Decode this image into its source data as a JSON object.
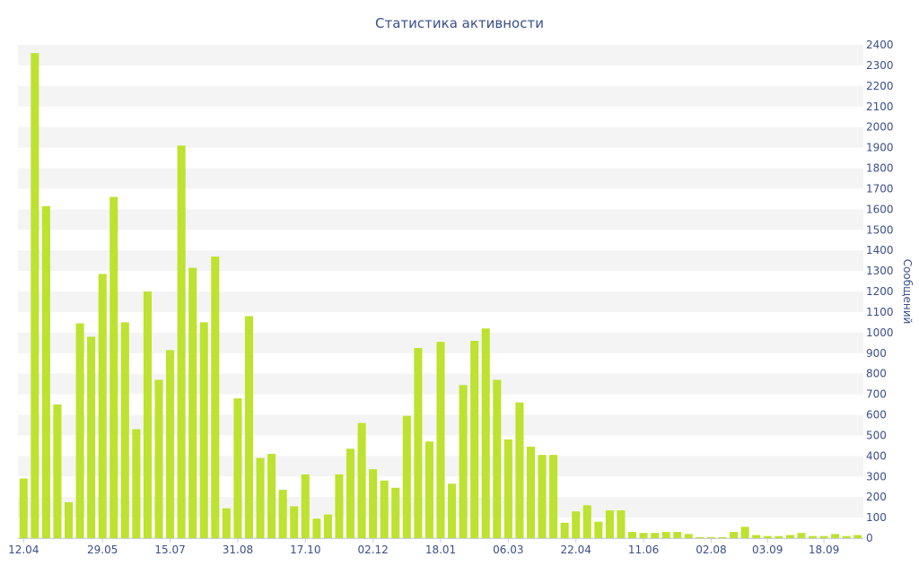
{
  "chart_data": {
    "type": "bar",
    "title": "Статистика активности",
    "ylabel": "Сообщений",
    "xlabel": "",
    "ylim": [
      0,
      2400
    ],
    "y_ticks": [
      0,
      100,
      200,
      300,
      400,
      500,
      600,
      700,
      800,
      900,
      1000,
      1100,
      1200,
      1300,
      1400,
      1500,
      1600,
      1700,
      1800,
      1900,
      2000,
      2100,
      2200,
      2300,
      2400
    ],
    "y_axis_side": "right",
    "grid": "alternating horizontal bands",
    "legend": "none",
    "bar_color": "#bde22f",
    "x_tick_labels": [
      {
        "label": "12.04",
        "index": 0
      },
      {
        "label": "29.05",
        "index": 7
      },
      {
        "label": "15.07",
        "index": 13
      },
      {
        "label": "31.08",
        "index": 19
      },
      {
        "label": "17.10",
        "index": 25
      },
      {
        "label": "02.12",
        "index": 31
      },
      {
        "label": "18.01",
        "index": 37
      },
      {
        "label": "06.03",
        "index": 43
      },
      {
        "label": "22.04",
        "index": 49
      },
      {
        "label": "11.06",
        "index": 55
      },
      {
        "label": "02.08",
        "index": 61
      },
      {
        "label": "03.09",
        "index": 66
      },
      {
        "label": "18.09",
        "index": 71
      }
    ],
    "values": [
      290,
      2360,
      1615,
      650,
      175,
      1045,
      980,
      1285,
      1660,
      1050,
      530,
      1200,
      770,
      915,
      1910,
      1315,
      1050,
      1370,
      145,
      680,
      1080,
      390,
      410,
      235,
      155,
      310,
      95,
      115,
      310,
      435,
      560,
      335,
      280,
      245,
      595,
      925,
      470,
      955,
      265,
      745,
      960,
      1020,
      770,
      480,
      660,
      445,
      405,
      405,
      75,
      130,
      160,
      80,
      135,
      135,
      30,
      25,
      25,
      30,
      30,
      20,
      5,
      5,
      5,
      30,
      55,
      15,
      10,
      10,
      15,
      25,
      10,
      10,
      20,
      10,
      15
    ]
  }
}
